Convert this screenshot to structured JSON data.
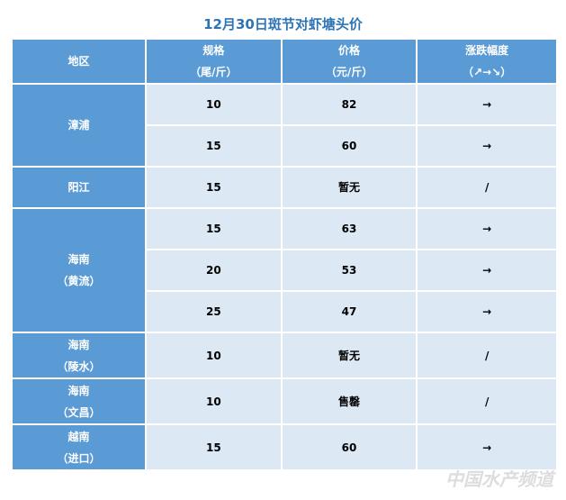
{
  "title": "12月30日斑节对虾塘头价",
  "header": [
    {
      "lines": [
        "地区"
      ]
    },
    {
      "lines": [
        "规格",
        "（尾/斤）"
      ]
    },
    {
      "lines": [
        "价格",
        "（元/斤）"
      ]
    },
    {
      "lines": [
        "涨跌幅度",
        "（↗→↘）"
      ]
    }
  ],
  "groups": [
    {
      "region": [
        "漳浦"
      ],
      "rows": [
        [
          "10",
          "82",
          "→"
        ],
        [
          "15",
          "60",
          "→"
        ]
      ]
    },
    {
      "region": [
        "阳江"
      ],
      "rows": [
        [
          "15",
          "暂无",
          "/"
        ]
      ]
    },
    {
      "region": [
        "海南",
        "（黄流）"
      ],
      "rows": [
        [
          "15",
          "63",
          "→"
        ],
        [
          "20",
          "53",
          "→"
        ],
        [
          "25",
          "47",
          "→"
        ]
      ]
    },
    {
      "region": [
        "海南",
        "（陵水）"
      ],
      "rows": [
        [
          "10",
          "暂无",
          "/"
        ]
      ]
    },
    {
      "region": [
        "海南",
        "（文昌）"
      ],
      "rows": [
        [
          "10",
          "售罄",
          "/"
        ]
      ]
    },
    {
      "region": [
        "越南",
        "（进口）"
      ],
      "rows": [
        [
          "15",
          "60",
          "→"
        ]
      ]
    }
  ],
  "watermark": "中国水产频道"
}
